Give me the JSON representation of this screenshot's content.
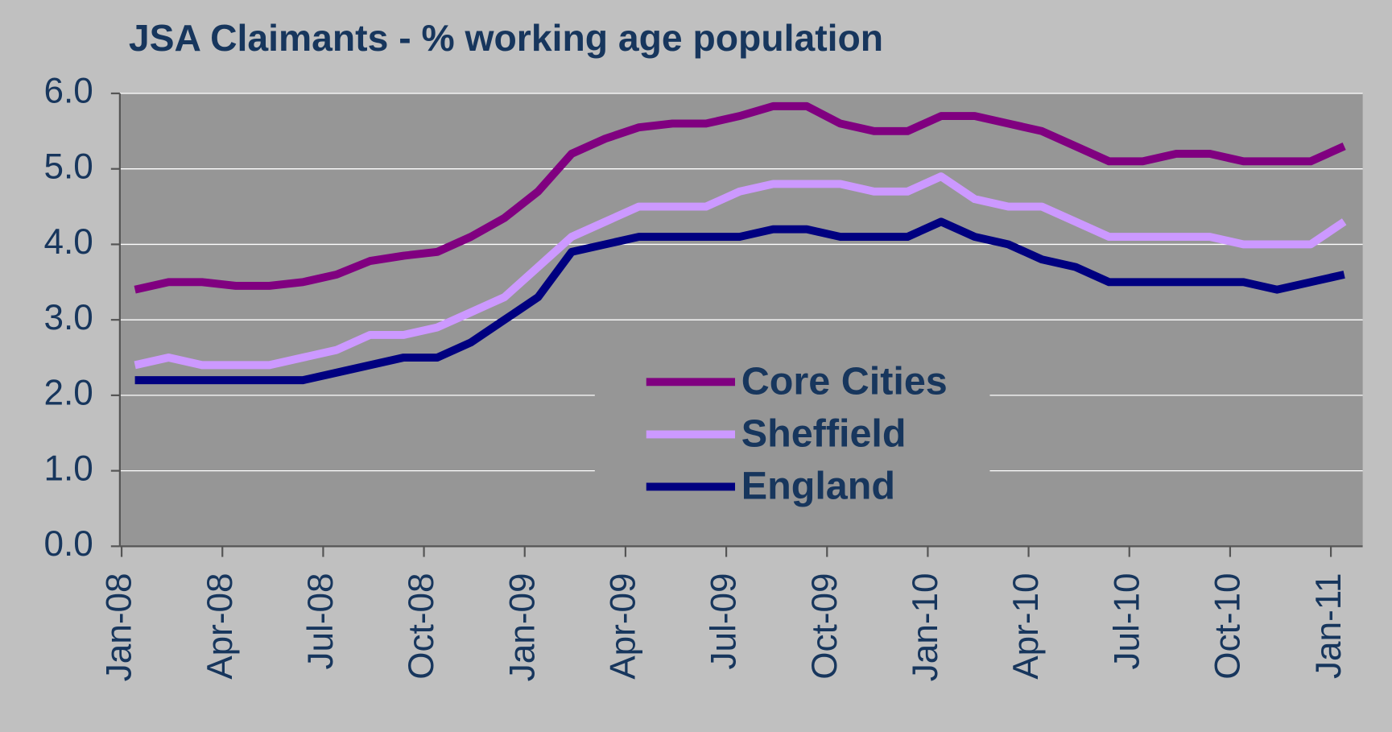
{
  "chart_data": {
    "type": "line",
    "title": "JSA Claimants - % working age population",
    "categories": [
      "Jan-08",
      null,
      null,
      "Apr-08",
      null,
      null,
      "Jul-08",
      null,
      null,
      "Oct-08",
      null,
      null,
      "Jan-09",
      null,
      null,
      "Apr-09",
      null,
      null,
      "Jul-09",
      null,
      null,
      "Oct-09",
      null,
      null,
      "Jan-10",
      null,
      null,
      "Apr-10",
      null,
      null,
      "Jul-10",
      null,
      null,
      "Oct-10",
      null,
      null,
      "Jan-11"
    ],
    "series": [
      {
        "name": "Core Cities",
        "color": "#800080",
        "values": [
          3.4,
          3.5,
          3.5,
          3.45,
          3.45,
          3.5,
          3.6,
          3.78,
          3.85,
          3.9,
          4.1,
          4.35,
          4.7,
          5.2,
          5.4,
          5.55,
          5.6,
          5.6,
          5.7,
          5.83,
          5.83,
          5.6,
          5.5,
          5.5,
          5.7,
          5.7,
          5.6,
          5.5,
          5.3,
          5.1,
          5.1,
          5.2,
          5.2,
          5.1,
          5.1,
          5.1,
          5.3
        ]
      },
      {
        "name": "Sheffield",
        "color": "#cc99ff",
        "values": [
          2.4,
          2.5,
          2.4,
          2.4,
          2.4,
          2.5,
          2.6,
          2.8,
          2.8,
          2.9,
          3.1,
          3.3,
          3.7,
          4.1,
          4.3,
          4.5,
          4.5,
          4.5,
          4.7,
          4.8,
          4.8,
          4.8,
          4.7,
          4.7,
          4.9,
          4.6,
          4.5,
          4.5,
          4.3,
          4.1,
          4.1,
          4.1,
          4.1,
          4.0,
          4.0,
          4.0,
          4.3
        ]
      },
      {
        "name": "England",
        "color": "#000080",
        "values": [
          2.2,
          2.2,
          2.2,
          2.2,
          2.2,
          2.2,
          2.3,
          2.4,
          2.5,
          2.5,
          2.7,
          3.0,
          3.3,
          3.9,
          4.0,
          4.1,
          4.1,
          4.1,
          4.1,
          4.2,
          4.2,
          4.1,
          4.1,
          4.1,
          4.3,
          4.1,
          4.0,
          3.8,
          3.7,
          3.5,
          3.5,
          3.5,
          3.5,
          3.5,
          3.4,
          3.5,
          3.6
        ]
      }
    ],
    "ylim": [
      0,
      6
    ],
    "yticks": [
      {
        "value": 0,
        "label": "0.0"
      },
      {
        "value": 1,
        "label": "1.0"
      },
      {
        "value": 2,
        "label": "2.0"
      },
      {
        "value": 3,
        "label": "3.0"
      },
      {
        "value": 4,
        "label": "4.0"
      },
      {
        "value": 5,
        "label": "5.0"
      },
      {
        "value": 6,
        "label": "6.0"
      }
    ],
    "grid": true
  }
}
